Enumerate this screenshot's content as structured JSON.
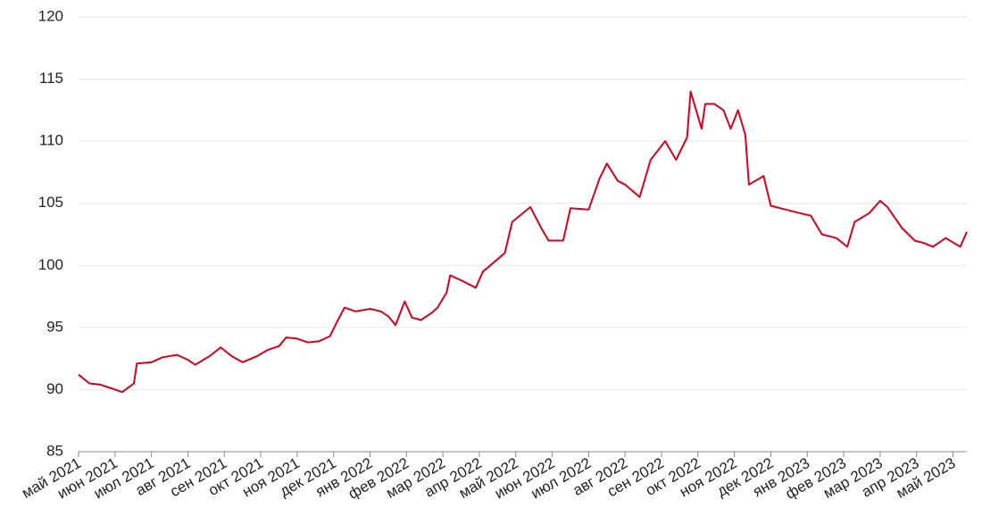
{
  "chart_data": {
    "type": "line",
    "x": [
      0,
      0.3,
      0.6,
      0.9,
      1.2,
      1.52,
      1.6,
      2,
      2.3,
      2.7,
      3,
      3.2,
      3.6,
      3.9,
      4.2,
      4.5,
      4.9,
      5.2,
      5.5,
      5.7,
      6,
      6.3,
      6.6,
      6.9,
      7.1,
      7.3,
      7.6,
      8,
      8.3,
      8.5,
      8.7,
      8.95,
      9.15,
      9.4,
      9.7,
      9.85,
      10.1,
      10.2,
      10.5,
      10.9,
      11.1,
      11.3,
      11.7,
      11.9,
      12.4,
      12.7,
      12.9,
      13.3,
      13.5,
      14,
      14.3,
      14.5,
      14.8,
      15,
      15.4,
      15.7,
      16.1,
      16.4,
      16.7,
      16.8,
      17.1,
      17.2,
      17.45,
      17.7,
      17.9,
      18.1,
      18.3,
      18.4,
      18.8,
      19,
      19.4,
      19.8,
      20.1,
      20.4,
      20.8,
      21.1,
      21.3,
      21.7,
      22,
      22.2,
      22.6,
      22.95,
      23.2,
      23.45,
      23.8,
      24.2,
      24.38
    ],
    "series": [
      {
        "color": "#d9001b",
        "values": [
          91.2,
          90.5,
          90.4,
          90.1,
          89.8,
          90.5,
          92.1,
          92.2,
          92.6,
          92.8,
          92.4,
          92.0,
          92.7,
          93.4,
          92.7,
          92.2,
          92.7,
          93.2,
          93.5,
          94.2,
          94.1,
          93.8,
          93.9,
          94.3,
          95.5,
          96.6,
          96.3,
          96.5,
          96.3,
          95.9,
          95.2,
          97.1,
          95.8,
          95.6,
          96.2,
          96.6,
          97.8,
          99.2,
          98.8,
          98.2,
          99.5,
          100,
          101,
          103.5,
          104.7,
          103,
          102,
          102,
          104.6,
          104.5,
          107,
          108.2,
          106.8,
          106.5,
          105.5,
          108.5,
          110,
          108.5,
          110.3,
          114,
          111,
          113,
          113,
          112.5,
          111,
          112.5,
          110.5,
          106.5,
          107.2,
          104.8,
          104.5,
          104.2,
          104,
          102.5,
          102.2,
          101.5,
          103.5,
          104.2,
          105.2,
          104.7,
          103,
          102,
          101.8,
          101.5,
          102.2,
          101.5,
          102.7
        ]
      }
    ],
    "xlim": [
      0,
      24.38
    ],
    "xticks": [
      {
        "value": 0,
        "label": "май 2021"
      },
      {
        "value": 1,
        "label": "июн 2021"
      },
      {
        "value": 2,
        "label": "июл 2021"
      },
      {
        "value": 3,
        "label": "авг 2021"
      },
      {
        "value": 4,
        "label": "сен 2021"
      },
      {
        "value": 5,
        "label": "окт 2021"
      },
      {
        "value": 6,
        "label": "ноя 2021"
      },
      {
        "value": 7,
        "label": "дек 2021"
      },
      {
        "value": 8,
        "label": "янв 2022"
      },
      {
        "value": 9,
        "label": "фев 2022"
      },
      {
        "value": 10,
        "label": "мар 2022"
      },
      {
        "value": 11,
        "label": "апр 2022"
      },
      {
        "value": 12,
        "label": "май 2022"
      },
      {
        "value": 13,
        "label": "июн 2022"
      },
      {
        "value": 14,
        "label": "июл 2022"
      },
      {
        "value": 15,
        "label": "авг 2022"
      },
      {
        "value": 16,
        "label": "сен 2022"
      },
      {
        "value": 17,
        "label": "окт 2022"
      },
      {
        "value": 18,
        "label": "ноя 2022"
      },
      {
        "value": 19,
        "label": "дек 2022"
      },
      {
        "value": 20,
        "label": "янв 2023"
      },
      {
        "value": 21,
        "label": "фев 2023"
      },
      {
        "value": 22,
        "label": "мар 2023"
      },
      {
        "value": 23,
        "label": "апр 2023"
      },
      {
        "value": 24,
        "label": "май 2023"
      }
    ],
    "ylim": [
      85,
      120
    ],
    "yticks": [
      85,
      90,
      95,
      100,
      105,
      110,
      115,
      120
    ],
    "grid": true
  }
}
